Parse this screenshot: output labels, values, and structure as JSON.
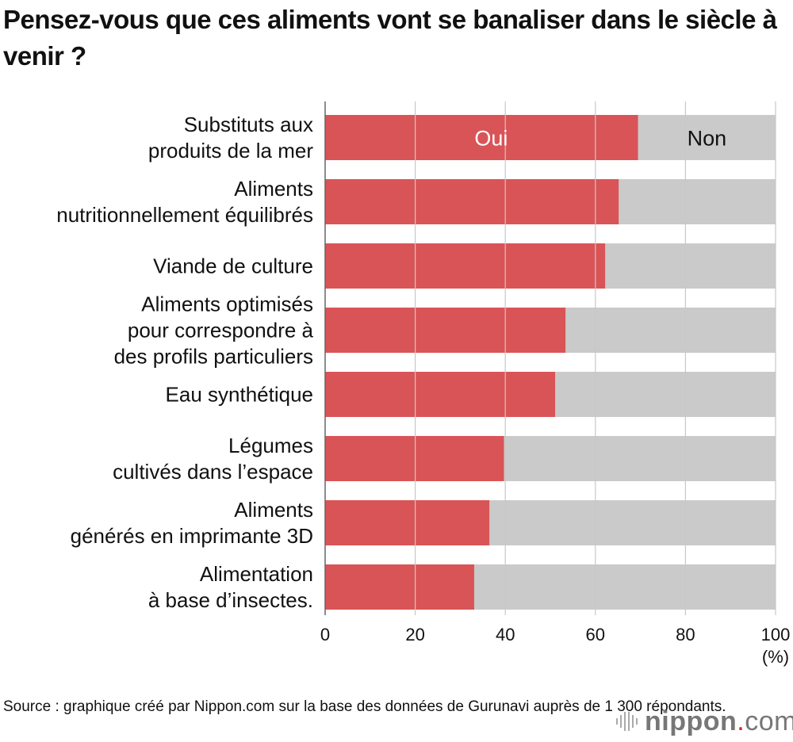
{
  "chart_data": {
    "type": "bar",
    "orientation": "horizontal",
    "stacked": true,
    "title": "Pensez-vous que ces aliments vont se banaliser dans le siècle à venir ?",
    "categories": [
      "Substituts aux\nproduits de la mer",
      "Aliments\nnutritionnellement équilibrés",
      "Viande de culture",
      "Aliments optimisés\npour correspondre à\ndes profils particuliers",
      "Eau synthétique",
      "Légumes\ncultivés dans l’espace",
      "Aliments\ngénérés en imprimante 3D",
      "Alimentation\nà base d’insectes."
    ],
    "series": [
      {
        "name": "Oui",
        "color": "#d95457",
        "values": [
          69.5,
          65.2,
          62.2,
          53.4,
          51.1,
          39.7,
          36.5,
          33.1
        ]
      },
      {
        "name": "Non",
        "color": "#cacaca",
        "values": [
          30.5,
          34.8,
          37.8,
          46.6,
          48.9,
          60.3,
          63.5,
          66.9
        ]
      }
    ],
    "xlim": [
      0,
      100
    ],
    "xticks": [
      "0",
      "20",
      "40",
      "60",
      "80",
      "100"
    ],
    "xunit": "(%)",
    "grid": true,
    "legend": "in-bar labels on first bar"
  },
  "source": "Source : graphique créé par Nippon.com sur la base des données de Gurunavi auprès de 1 300 répondants.",
  "logo": {
    "text": "nippon",
    "dot": ".",
    "suffix": "com"
  }
}
